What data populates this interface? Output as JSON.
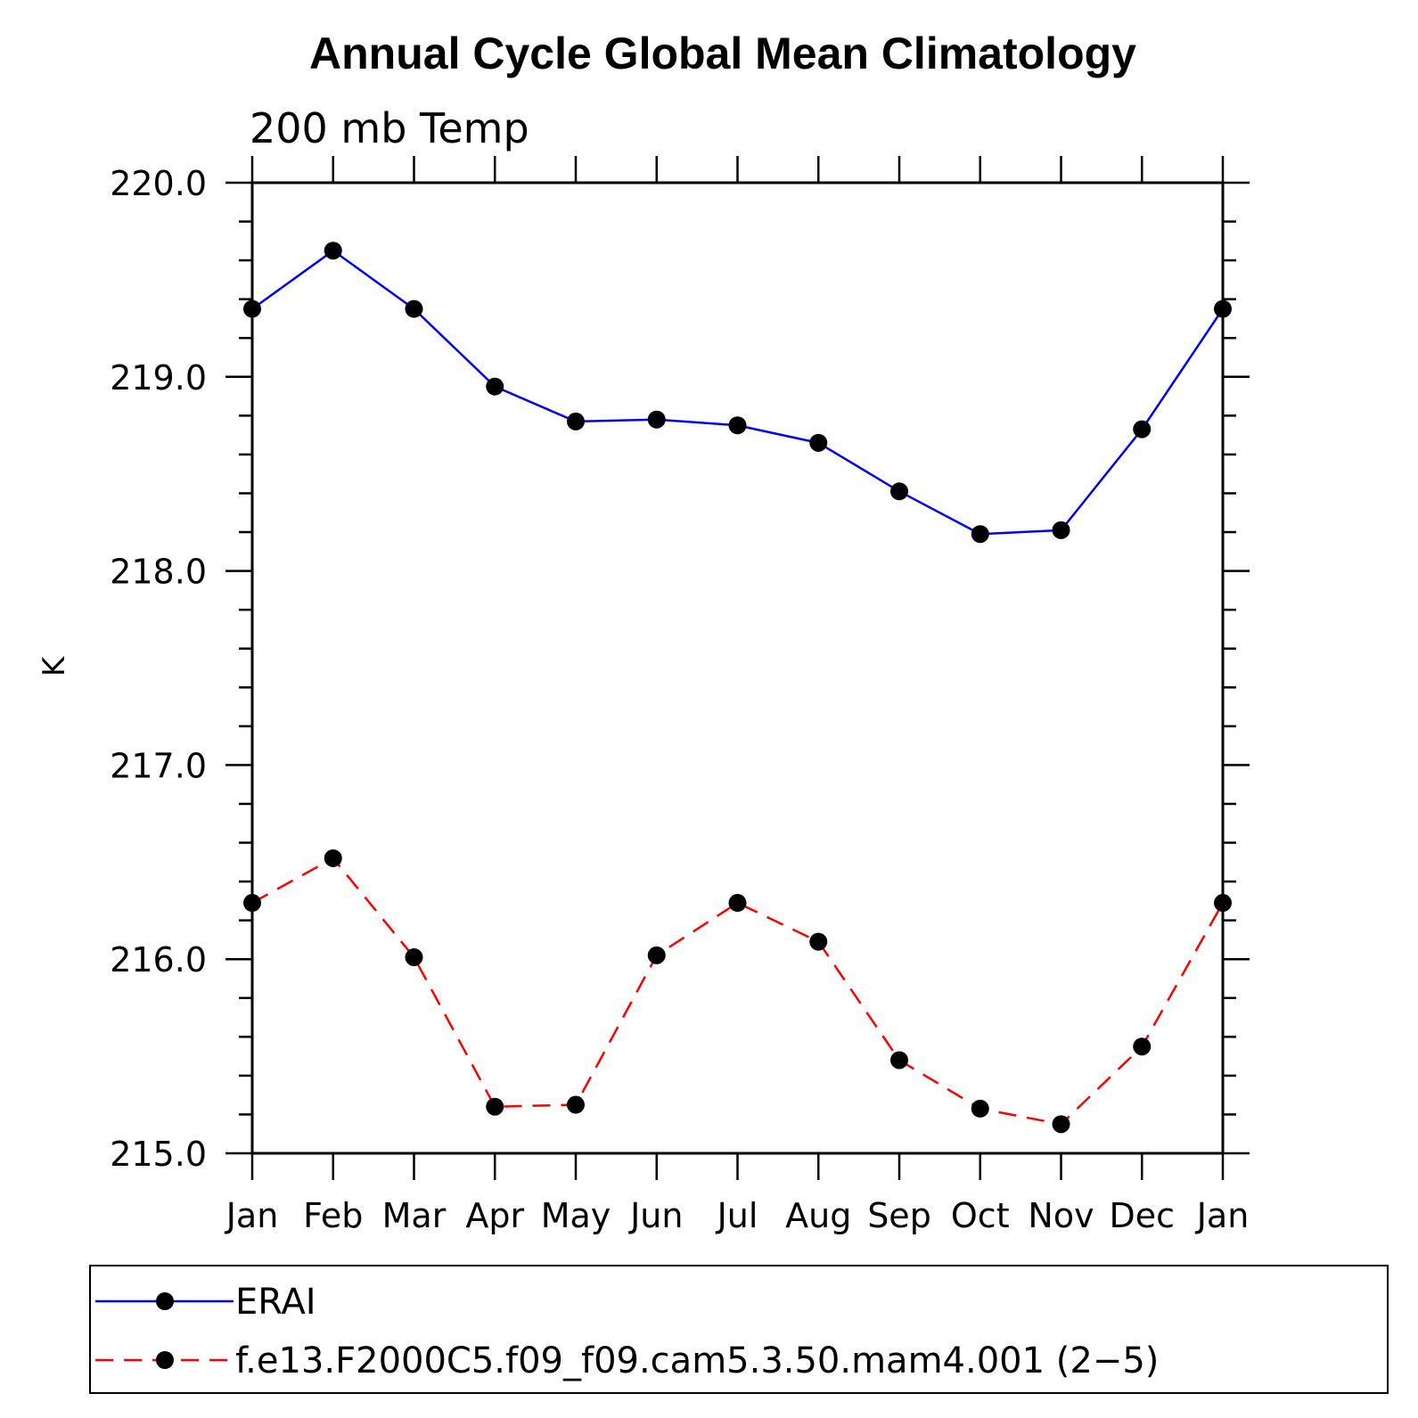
{
  "chart_data": {
    "type": "line",
    "title": "Annual Cycle Global Mean Climatology",
    "subtitle": "200 mb Temp",
    "xlabel": "",
    "ylabel": "K",
    "categories": [
      "Jan",
      "Feb",
      "Mar",
      "Apr",
      "May",
      "Jun",
      "Jul",
      "Aug",
      "Sep",
      "Oct",
      "Nov",
      "Dec",
      "Jan"
    ],
    "ylim": [
      215.0,
      220.0
    ],
    "ytick_labels": [
      "215.0",
      "216.0",
      "217.0",
      "218.0",
      "219.0",
      "220.0"
    ],
    "grid": false,
    "legend_position": "bottom",
    "series": [
      {
        "name": "ERAI",
        "color": "#0000ff",
        "style": "solid",
        "marker": "filled-circle",
        "values": [
          219.35,
          219.65,
          219.35,
          218.95,
          218.77,
          218.78,
          218.75,
          218.66,
          218.41,
          218.19,
          218.21,
          218.73,
          219.35
        ]
      },
      {
        "name": "f.e13.F2000C5.f09_f09.cam5.3.50.mam4.001 (2−5)",
        "color": "#ff0000",
        "style": "dashed",
        "marker": "filled-circle",
        "values": [
          216.29,
          216.52,
          216.01,
          215.24,
          215.25,
          216.02,
          216.29,
          216.09,
          215.48,
          215.23,
          215.15,
          215.55,
          216.29
        ]
      }
    ]
  }
}
